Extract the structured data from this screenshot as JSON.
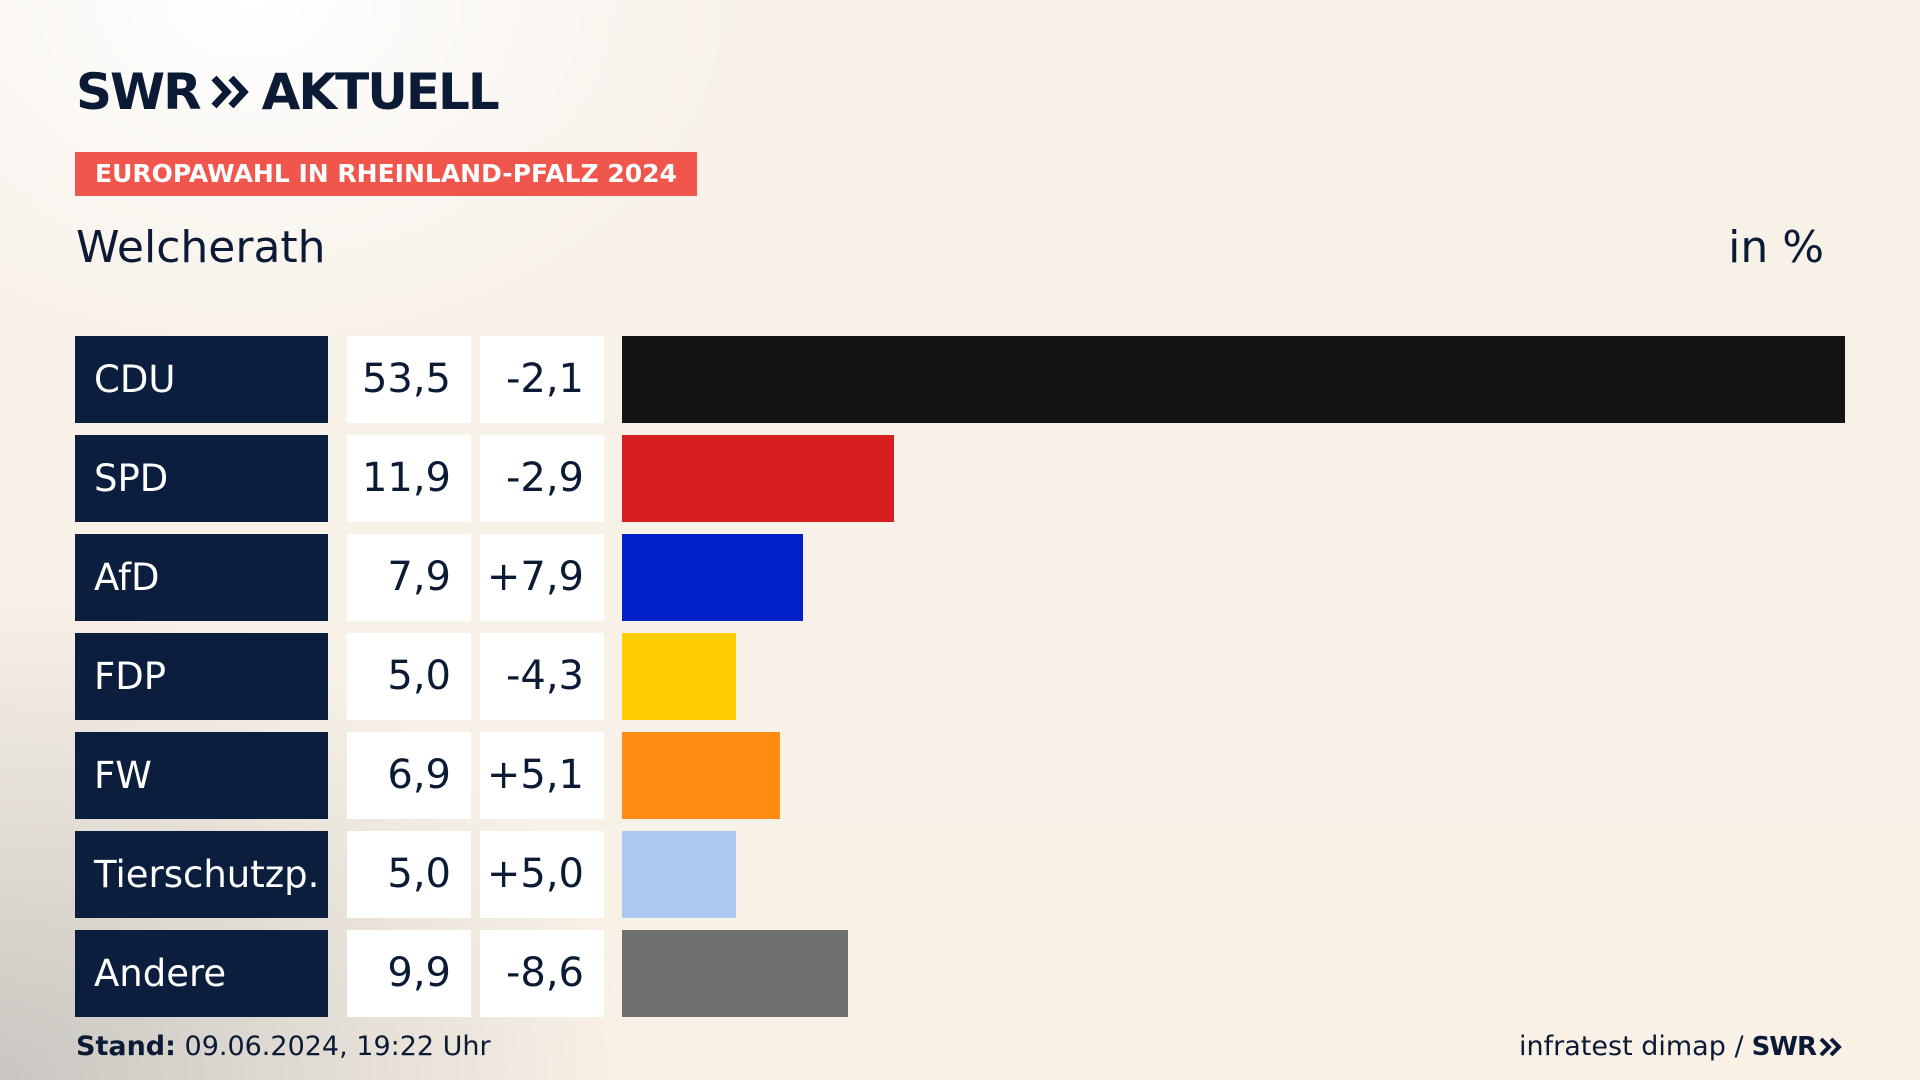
{
  "brand": {
    "logo_text_left": "SWR",
    "logo_text_right": "AKTUELL"
  },
  "badge": {
    "text": "EUROPAWAHL IN RHEINLAND-PFALZ 2024",
    "color": "#f0564b"
  },
  "header": {
    "subtitle": "Welcherath",
    "unit": "in %"
  },
  "chart_data": {
    "type": "bar",
    "orientation": "horizontal",
    "title": "EUROPAWAHL IN RHEINLAND-PFALZ 2024",
    "subtitle": "Welcherath",
    "unit": "in %",
    "categories": [
      "CDU",
      "SPD",
      "AfD",
      "FDP",
      "FW",
      "Tierschutzp.",
      "Andere"
    ],
    "values": [
      53.5,
      11.9,
      7.9,
      5.0,
      6.9,
      5.0,
      9.9
    ],
    "value_labels": [
      "53,5",
      "11,9",
      "7,9",
      "5,0",
      "6,9",
      "5,0",
      "9,9"
    ],
    "diff_values": [
      -2.1,
      -2.9,
      7.9,
      -4.3,
      5.1,
      5.0,
      -8.6
    ],
    "diff_labels": [
      "-2,1",
      "-2,9",
      "+7,9",
      "-4,3",
      "+5,1",
      "+5,0",
      "-8,6"
    ],
    "colors": [
      "#141414",
      "#d71f1f",
      "#0021c8",
      "#ffcc00",
      "#fe8b12",
      "#aac8f0",
      "#6e6f71"
    ],
    "xlim": [
      0,
      53.5
    ],
    "grid": false,
    "legend": "none"
  },
  "footer": {
    "stand_label": "Stand:",
    "stand_value": "09.06.2024, 19:22 Uhr",
    "source": "infratest dimap /",
    "source_logo": "SWR"
  }
}
